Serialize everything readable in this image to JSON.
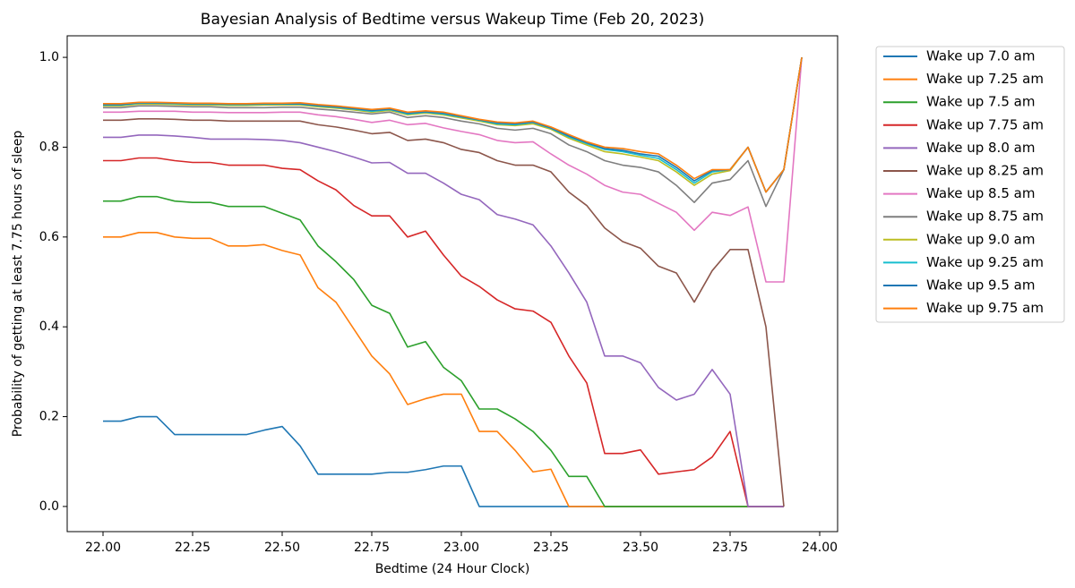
{
  "chart_data": {
    "type": "line",
    "title": "Bayesian Analysis of Bedtime versus Wakeup Time (Feb 20, 2023)",
    "xlabel": "Bedtime (24 Hour Clock)",
    "ylabel": "Probability of getting at least 7.75 hours of sleep",
    "x": [
      22.0,
      22.05,
      22.1,
      22.15,
      22.2,
      22.25,
      22.3,
      22.35,
      22.4,
      22.45,
      22.5,
      22.55,
      22.6,
      22.65,
      22.7,
      22.75,
      22.8,
      22.85,
      22.9,
      22.95,
      23.0,
      23.05,
      23.1,
      23.15,
      23.2,
      23.25,
      23.3,
      23.35,
      23.4,
      23.45,
      23.5,
      23.55,
      23.6,
      23.65,
      23.7,
      23.75,
      23.8,
      23.85,
      23.9,
      23.95
    ],
    "xlim": [
      21.9,
      24.05
    ],
    "xticks": [
      {
        "value": 22.0,
        "label": "22.00"
      },
      {
        "value": 22.25,
        "label": "22.25"
      },
      {
        "value": 22.5,
        "label": "22.50"
      },
      {
        "value": 22.75,
        "label": "22.75"
      },
      {
        "value": 23.0,
        "label": "23.00"
      },
      {
        "value": 23.25,
        "label": "23.25"
      },
      {
        "value": 23.5,
        "label": "23.50"
      },
      {
        "value": 23.75,
        "label": "23.75"
      },
      {
        "value": 24.0,
        "label": "24.00"
      }
    ],
    "ylim": [
      -0.056,
      1.048
    ],
    "yticks": [
      {
        "value": 0.0,
        "label": "0.0"
      },
      {
        "value": 0.2,
        "label": "0.2"
      },
      {
        "value": 0.4,
        "label": "0.4"
      },
      {
        "value": 0.6,
        "label": "0.6"
      },
      {
        "value": 0.8,
        "label": "0.8"
      },
      {
        "value": 1.0,
        "label": "1.0"
      }
    ],
    "grid": false,
    "legend": "outside-upper-right",
    "series": [
      {
        "name": "Wake up 7.0 am",
        "color": "#1f77b4",
        "values": [
          0.19,
          0.19,
          0.2,
          0.2,
          0.16,
          0.16,
          0.16,
          0.16,
          0.16,
          0.17,
          0.178,
          0.135,
          0.072,
          0.072,
          0.072,
          0.072,
          0.076,
          0.076,
          0.082,
          0.09,
          0.09,
          0,
          0,
          0,
          0,
          0,
          0,
          0,
          0,
          0,
          0,
          0,
          0,
          0,
          0,
          0,
          0,
          0,
          0,
          null
        ]
      },
      {
        "name": "Wake up 7.25 am",
        "color": "#ff7f0e",
        "values": [
          0.6,
          0.6,
          0.61,
          0.61,
          0.6,
          0.597,
          0.597,
          0.58,
          0.58,
          0.583,
          0.57,
          0.56,
          0.487,
          0.455,
          0.395,
          0.335,
          0.295,
          0.227,
          0.24,
          0.25,
          0.25,
          0.167,
          0.167,
          0.125,
          0.077,
          0.083,
          0,
          0,
          0,
          0,
          0,
          0,
          0,
          0,
          0,
          0,
          0,
          0,
          0,
          null
        ]
      },
      {
        "name": "Wake up 7.5 am",
        "color": "#2ca02c",
        "values": [
          0.68,
          0.68,
          0.69,
          0.69,
          0.68,
          0.677,
          0.677,
          0.668,
          0.668,
          0.668,
          0.653,
          0.638,
          0.58,
          0.545,
          0.505,
          0.448,
          0.43,
          0.355,
          0.367,
          0.31,
          0.28,
          0.217,
          0.217,
          0.195,
          0.167,
          0.125,
          0.067,
          0.067,
          0,
          0,
          0,
          0,
          0,
          0,
          0,
          0,
          0,
          0,
          0,
          null
        ]
      },
      {
        "name": "Wake up 7.75 am",
        "color": "#d62728",
        "values": [
          0.77,
          0.77,
          0.776,
          0.776,
          0.77,
          0.766,
          0.766,
          0.76,
          0.76,
          0.76,
          0.753,
          0.75,
          0.725,
          0.705,
          0.67,
          0.647,
          0.647,
          0.6,
          0.613,
          0.56,
          0.513,
          0.49,
          0.46,
          0.44,
          0.435,
          0.41,
          0.335,
          0.275,
          0.118,
          0.118,
          0.126,
          0.072,
          0.077,
          0.082,
          0.11,
          0.167,
          0,
          0,
          0,
          null
        ]
      },
      {
        "name": "Wake up 8.0 am",
        "color": "#9467bd",
        "values": [
          0.822,
          0.822,
          0.827,
          0.827,
          0.825,
          0.822,
          0.818,
          0.818,
          0.818,
          0.817,
          0.815,
          0.81,
          0.8,
          0.79,
          0.778,
          0.765,
          0.766,
          0.742,
          0.742,
          0.72,
          0.695,
          0.683,
          0.65,
          0.64,
          0.627,
          0.58,
          0.52,
          0.455,
          0.335,
          0.335,
          0.32,
          0.265,
          0.237,
          0.25,
          0.305,
          0.25,
          0,
          0,
          0,
          null
        ]
      },
      {
        "name": "Wake up 8.25 am",
        "color": "#8c564b",
        "values": [
          0.86,
          0.86,
          0.863,
          0.863,
          0.862,
          0.86,
          0.86,
          0.858,
          0.858,
          0.858,
          0.858,
          0.858,
          0.85,
          0.845,
          0.838,
          0.83,
          0.833,
          0.815,
          0.818,
          0.81,
          0.795,
          0.788,
          0.77,
          0.76,
          0.76,
          0.745,
          0.7,
          0.67,
          0.62,
          0.59,
          0.575,
          0.535,
          0.52,
          0.455,
          0.525,
          0.572,
          0.572,
          0.4,
          0,
          null
        ]
      },
      {
        "name": "Wake up 8.5 am",
        "color": "#e377c2",
        "values": [
          0.878,
          0.878,
          0.88,
          0.88,
          0.88,
          0.878,
          0.878,
          0.877,
          0.877,
          0.877,
          0.878,
          0.878,
          0.872,
          0.868,
          0.862,
          0.855,
          0.86,
          0.85,
          0.853,
          0.843,
          0.835,
          0.828,
          0.815,
          0.81,
          0.812,
          0.785,
          0.76,
          0.74,
          0.715,
          0.7,
          0.695,
          0.675,
          0.655,
          0.615,
          0.655,
          0.648,
          0.667,
          0.5,
          0.5,
          1.0
        ]
      },
      {
        "name": "Wake up 8.75 am",
        "color": "#7f7f7f",
        "values": [
          0.888,
          0.888,
          0.892,
          0.892,
          0.891,
          0.89,
          0.89,
          0.888,
          0.888,
          0.888,
          0.889,
          0.889,
          0.885,
          0.882,
          0.878,
          0.874,
          0.878,
          0.866,
          0.87,
          0.866,
          0.858,
          0.852,
          0.842,
          0.838,
          0.842,
          0.83,
          0.805,
          0.79,
          0.77,
          0.76,
          0.755,
          0.745,
          0.715,
          0.677,
          0.72,
          0.728,
          0.77,
          0.668,
          0.75,
          1.0
        ]
      },
      {
        "name": "Wake up 9.0 am",
        "color": "#bcbd22",
        "values": [
          0.892,
          0.892,
          0.896,
          0.896,
          0.895,
          0.894,
          0.894,
          0.893,
          0.893,
          0.894,
          0.894,
          0.894,
          0.89,
          0.887,
          0.883,
          0.878,
          0.882,
          0.872,
          0.876,
          0.872,
          0.865,
          0.858,
          0.85,
          0.848,
          0.852,
          0.84,
          0.82,
          0.805,
          0.79,
          0.785,
          0.778,
          0.77,
          0.745,
          0.715,
          0.74,
          0.748,
          0.8,
          0.7,
          0.75,
          1.0
        ]
      },
      {
        "name": "Wake up 9.25 am",
        "color": "#17becf",
        "values": [
          0.894,
          0.894,
          0.898,
          0.898,
          0.897,
          0.896,
          0.896,
          0.895,
          0.895,
          0.896,
          0.896,
          0.896,
          0.892,
          0.889,
          0.885,
          0.88,
          0.884,
          0.874,
          0.878,
          0.874,
          0.867,
          0.86,
          0.852,
          0.85,
          0.855,
          0.842,
          0.823,
          0.808,
          0.795,
          0.79,
          0.782,
          0.775,
          0.75,
          0.72,
          0.745,
          0.75,
          0.8,
          0.7,
          0.75,
          1.0
        ]
      },
      {
        "name": "Wake up 9.5 am",
        "color": "#1f77b4",
        "values": [
          0.895,
          0.895,
          0.899,
          0.899,
          0.898,
          0.897,
          0.897,
          0.896,
          0.896,
          0.897,
          0.897,
          0.897,
          0.893,
          0.89,
          0.886,
          0.882,
          0.885,
          0.876,
          0.879,
          0.876,
          0.868,
          0.861,
          0.854,
          0.852,
          0.856,
          0.843,
          0.825,
          0.81,
          0.797,
          0.793,
          0.785,
          0.78,
          0.755,
          0.725,
          0.748,
          0.75,
          0.8,
          0.7,
          0.75,
          1.0
        ]
      },
      {
        "name": "Wake up 9.75 am",
        "color": "#ff7f0e",
        "values": [
          0.897,
          0.897,
          0.9,
          0.9,
          0.899,
          0.898,
          0.898,
          0.897,
          0.897,
          0.898,
          0.898,
          0.899,
          0.895,
          0.892,
          0.888,
          0.884,
          0.887,
          0.878,
          0.881,
          0.878,
          0.87,
          0.862,
          0.856,
          0.854,
          0.858,
          0.845,
          0.828,
          0.812,
          0.8,
          0.797,
          0.79,
          0.785,
          0.76,
          0.73,
          0.75,
          0.75,
          0.8,
          0.7,
          0.75,
          1.0
        ]
      }
    ]
  }
}
